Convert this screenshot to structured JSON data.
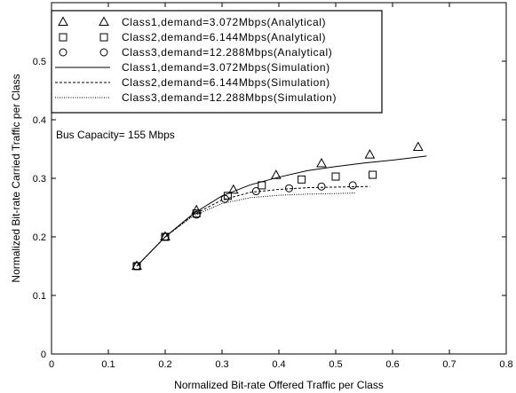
{
  "chart_data": {
    "type": "scatter",
    "title": "",
    "xlabel": "Normalized Bit-rate Offered Traffic per Class",
    "ylabel": "Normalized Bit-rate Carried Traffic per Class",
    "xlim": [
      0,
      0.8
    ],
    "ylim": [
      0,
      0.6
    ],
    "x_ticks": [
      "0",
      "0.1",
      "0.2",
      "0.3",
      "0.4",
      "0.5",
      "0.6",
      "0.7",
      "0.8"
    ],
    "y_ticks": [
      "0",
      "0.1",
      "0.2",
      "0.3",
      "0.4",
      "0.5"
    ],
    "grid": false,
    "legend_position": "top-left",
    "annotation": "Bus Capacity= 155 Mbps",
    "series": [
      {
        "name": "Class1,demand=3.072Mbps(Analytical)",
        "kind": "markers",
        "marker": "triangle",
        "x": [
          0.15,
          0.2,
          0.255,
          0.32,
          0.395,
          0.475,
          0.56,
          0.645
        ],
        "y": [
          0.15,
          0.2,
          0.245,
          0.28,
          0.305,
          0.325,
          0.34,
          0.353
        ]
      },
      {
        "name": "Class2,demand=6.144Mbps(Analytical)",
        "kind": "markers",
        "marker": "square",
        "x": [
          0.15,
          0.2,
          0.255,
          0.31,
          0.37,
          0.44,
          0.5,
          0.565
        ],
        "y": [
          0.15,
          0.2,
          0.24,
          0.27,
          0.288,
          0.298,
          0.303,
          0.306
        ]
      },
      {
        "name": "Class3,demand=12.288Mbps(Analytical)",
        "kind": "markers",
        "marker": "circle",
        "x": [
          0.15,
          0.2,
          0.255,
          0.305,
          0.36,
          0.418,
          0.475,
          0.53
        ],
        "y": [
          0.15,
          0.2,
          0.238,
          0.265,
          0.278,
          0.283,
          0.286,
          0.288
        ]
      },
      {
        "name": "Class1,demand=3.072Mbps(Simulation)",
        "kind": "line",
        "dash": "solid",
        "x": [
          0.15,
          0.2,
          0.25,
          0.3,
          0.35,
          0.4,
          0.45,
          0.5,
          0.55,
          0.6,
          0.66
        ],
        "y": [
          0.15,
          0.2,
          0.24,
          0.27,
          0.289,
          0.302,
          0.313,
          0.32,
          0.326,
          0.331,
          0.338
        ]
      },
      {
        "name": "Class2,demand=6.144Mbps(Simulation)",
        "kind": "line",
        "dash": "dashed",
        "x": [
          0.15,
          0.2,
          0.25,
          0.3,
          0.35,
          0.4,
          0.45,
          0.5,
          0.56
        ],
        "y": [
          0.15,
          0.2,
          0.238,
          0.263,
          0.276,
          0.281,
          0.284,
          0.285,
          0.286
        ]
      },
      {
        "name": "Class3,demand=12.288Mbps(Simulation)",
        "kind": "line",
        "dash": "dotted",
        "x": [
          0.15,
          0.2,
          0.25,
          0.3,
          0.35,
          0.4,
          0.45,
          0.5,
          0.535
        ],
        "y": [
          0.15,
          0.2,
          0.236,
          0.257,
          0.267,
          0.271,
          0.273,
          0.274,
          0.275
        ]
      }
    ]
  }
}
